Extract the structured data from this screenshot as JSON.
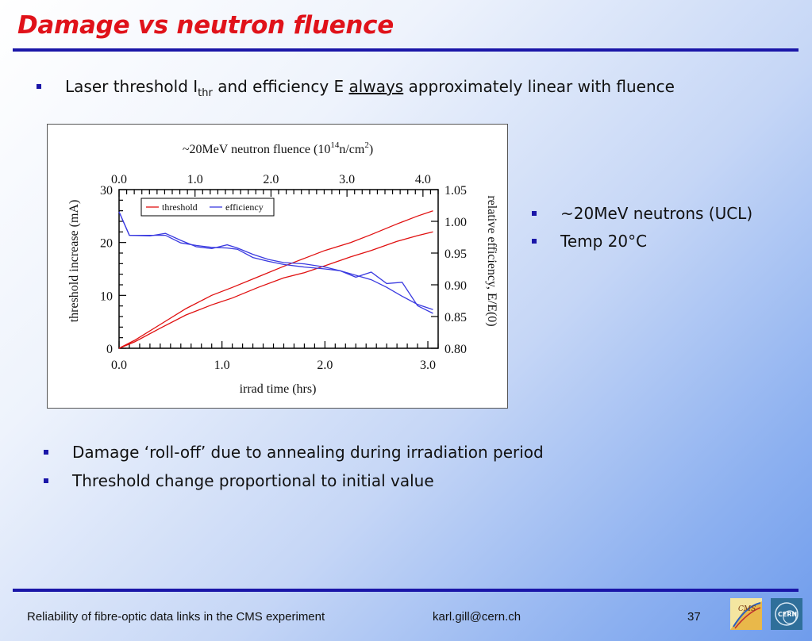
{
  "slide": {
    "title": "Damage vs neutron fluence",
    "bullet1": {
      "pre": "Laser threshold I",
      "sub": "thr",
      "mid": " and efficiency E ",
      "underlined": "always",
      "post": " approximately linear with fluence"
    },
    "side_bullets": [
      "~20MeV neutrons (UCL)",
      "Temp 20°C"
    ],
    "bottom_bullets": [
      "Damage ‘roll-off’ due to annealing during irradiation period",
      "Threshold change proportional to initial value"
    ],
    "footer": {
      "left": "Reliability of fibre-optic data links in the CMS experiment",
      "email": "karl.gill@cern.ch",
      "page": "37"
    },
    "colors": {
      "title": "#e0121a",
      "rule": "#1a16a8",
      "threshold": "#e01010",
      "efficiency": "#3a3ae0"
    },
    "logos": [
      "cms-logo",
      "cern-logo"
    ]
  },
  "chart_data": {
    "type": "line",
    "top_axis_label": "~20MeV neutron fluence (10^14 n/cm^2)",
    "top_axis_label_parts": {
      "a": "~20MeV neutron fluence (10",
      "b": "14",
      "c": "n/cm",
      "d": "2",
      "e": ")"
    },
    "xlabel": "irrad time (hrs)",
    "ylabel_left": "threshold increase (mA)",
    "ylabel_right": "relative efficiency, E/E(0)",
    "xlim": [
      0,
      3.1
    ],
    "ylim_left": [
      0,
      30
    ],
    "ylim_right": [
      0.8,
      1.05
    ],
    "x_ticks": [
      "0.0",
      "1.0",
      "2.0",
      "3.0"
    ],
    "top_ticks": [
      "0.0",
      "1.0",
      "2.0",
      "3.0",
      "4.0"
    ],
    "left_ticks": [
      "0",
      "10",
      "20",
      "30"
    ],
    "right_ticks": [
      "0.80",
      "0.85",
      "0.90",
      "0.95",
      "1.00",
      "1.05"
    ],
    "legend": [
      "threshold",
      "efficiency"
    ],
    "legend_position": "top-left",
    "series": [
      {
        "name": "threshold",
        "axis": "left",
        "x": [
          0,
          0.15,
          0.4,
          0.65,
          0.9,
          1.1,
          1.35,
          1.6,
          1.8,
          2.0,
          2.25,
          2.45,
          2.7,
          2.9,
          3.05
        ],
        "y": [
          0,
          1.5,
          4.5,
          7.5,
          10,
          11.5,
          13.5,
          15.5,
          17,
          18.5,
          20,
          21.5,
          23.5,
          25,
          26
        ]
      },
      {
        "name": "threshold",
        "axis": "left",
        "x": [
          0,
          0.15,
          0.4,
          0.65,
          0.9,
          1.1,
          1.35,
          1.6,
          1.8,
          2.0,
          2.25,
          2.45,
          2.7,
          2.9,
          3.05
        ],
        "y": [
          0,
          1.2,
          3.8,
          6.3,
          8.2,
          9.5,
          11.5,
          13.3,
          14.3,
          15.6,
          17.3,
          18.5,
          20.2,
          21.3,
          22
        ]
      },
      {
        "name": "efficiency",
        "axis": "right",
        "x": [
          0,
          0.1,
          0.3,
          0.45,
          0.6,
          0.75,
          0.9,
          1.05,
          1.15,
          1.3,
          1.45,
          1.6,
          1.8,
          2.0,
          2.15,
          2.3,
          2.45,
          2.6,
          2.75,
          2.9,
          3.05
        ],
        "y": [
          1.015,
          0.978,
          0.978,
          0.978,
          0.966,
          0.962,
          0.959,
          0.958,
          0.956,
          0.943,
          0.937,
          0.932,
          0.928,
          0.925,
          0.922,
          0.915,
          0.908,
          0.896,
          0.882,
          0.869,
          0.861
        ]
      },
      {
        "name": "efficiency",
        "axis": "right",
        "x": [
          0,
          0.1,
          0.3,
          0.45,
          0.6,
          0.75,
          0.9,
          1.05,
          1.15,
          1.3,
          1.45,
          1.6,
          1.8,
          2.0,
          2.15,
          2.3,
          2.45,
          2.6,
          2.75,
          2.9,
          3.05
        ],
        "y": [
          1.015,
          0.978,
          0.977,
          0.981,
          0.97,
          0.96,
          0.957,
          0.963,
          0.958,
          0.948,
          0.94,
          0.935,
          0.933,
          0.928,
          0.922,
          0.912,
          0.92,
          0.902,
          0.904,
          0.867,
          0.855
        ]
      }
    ]
  }
}
